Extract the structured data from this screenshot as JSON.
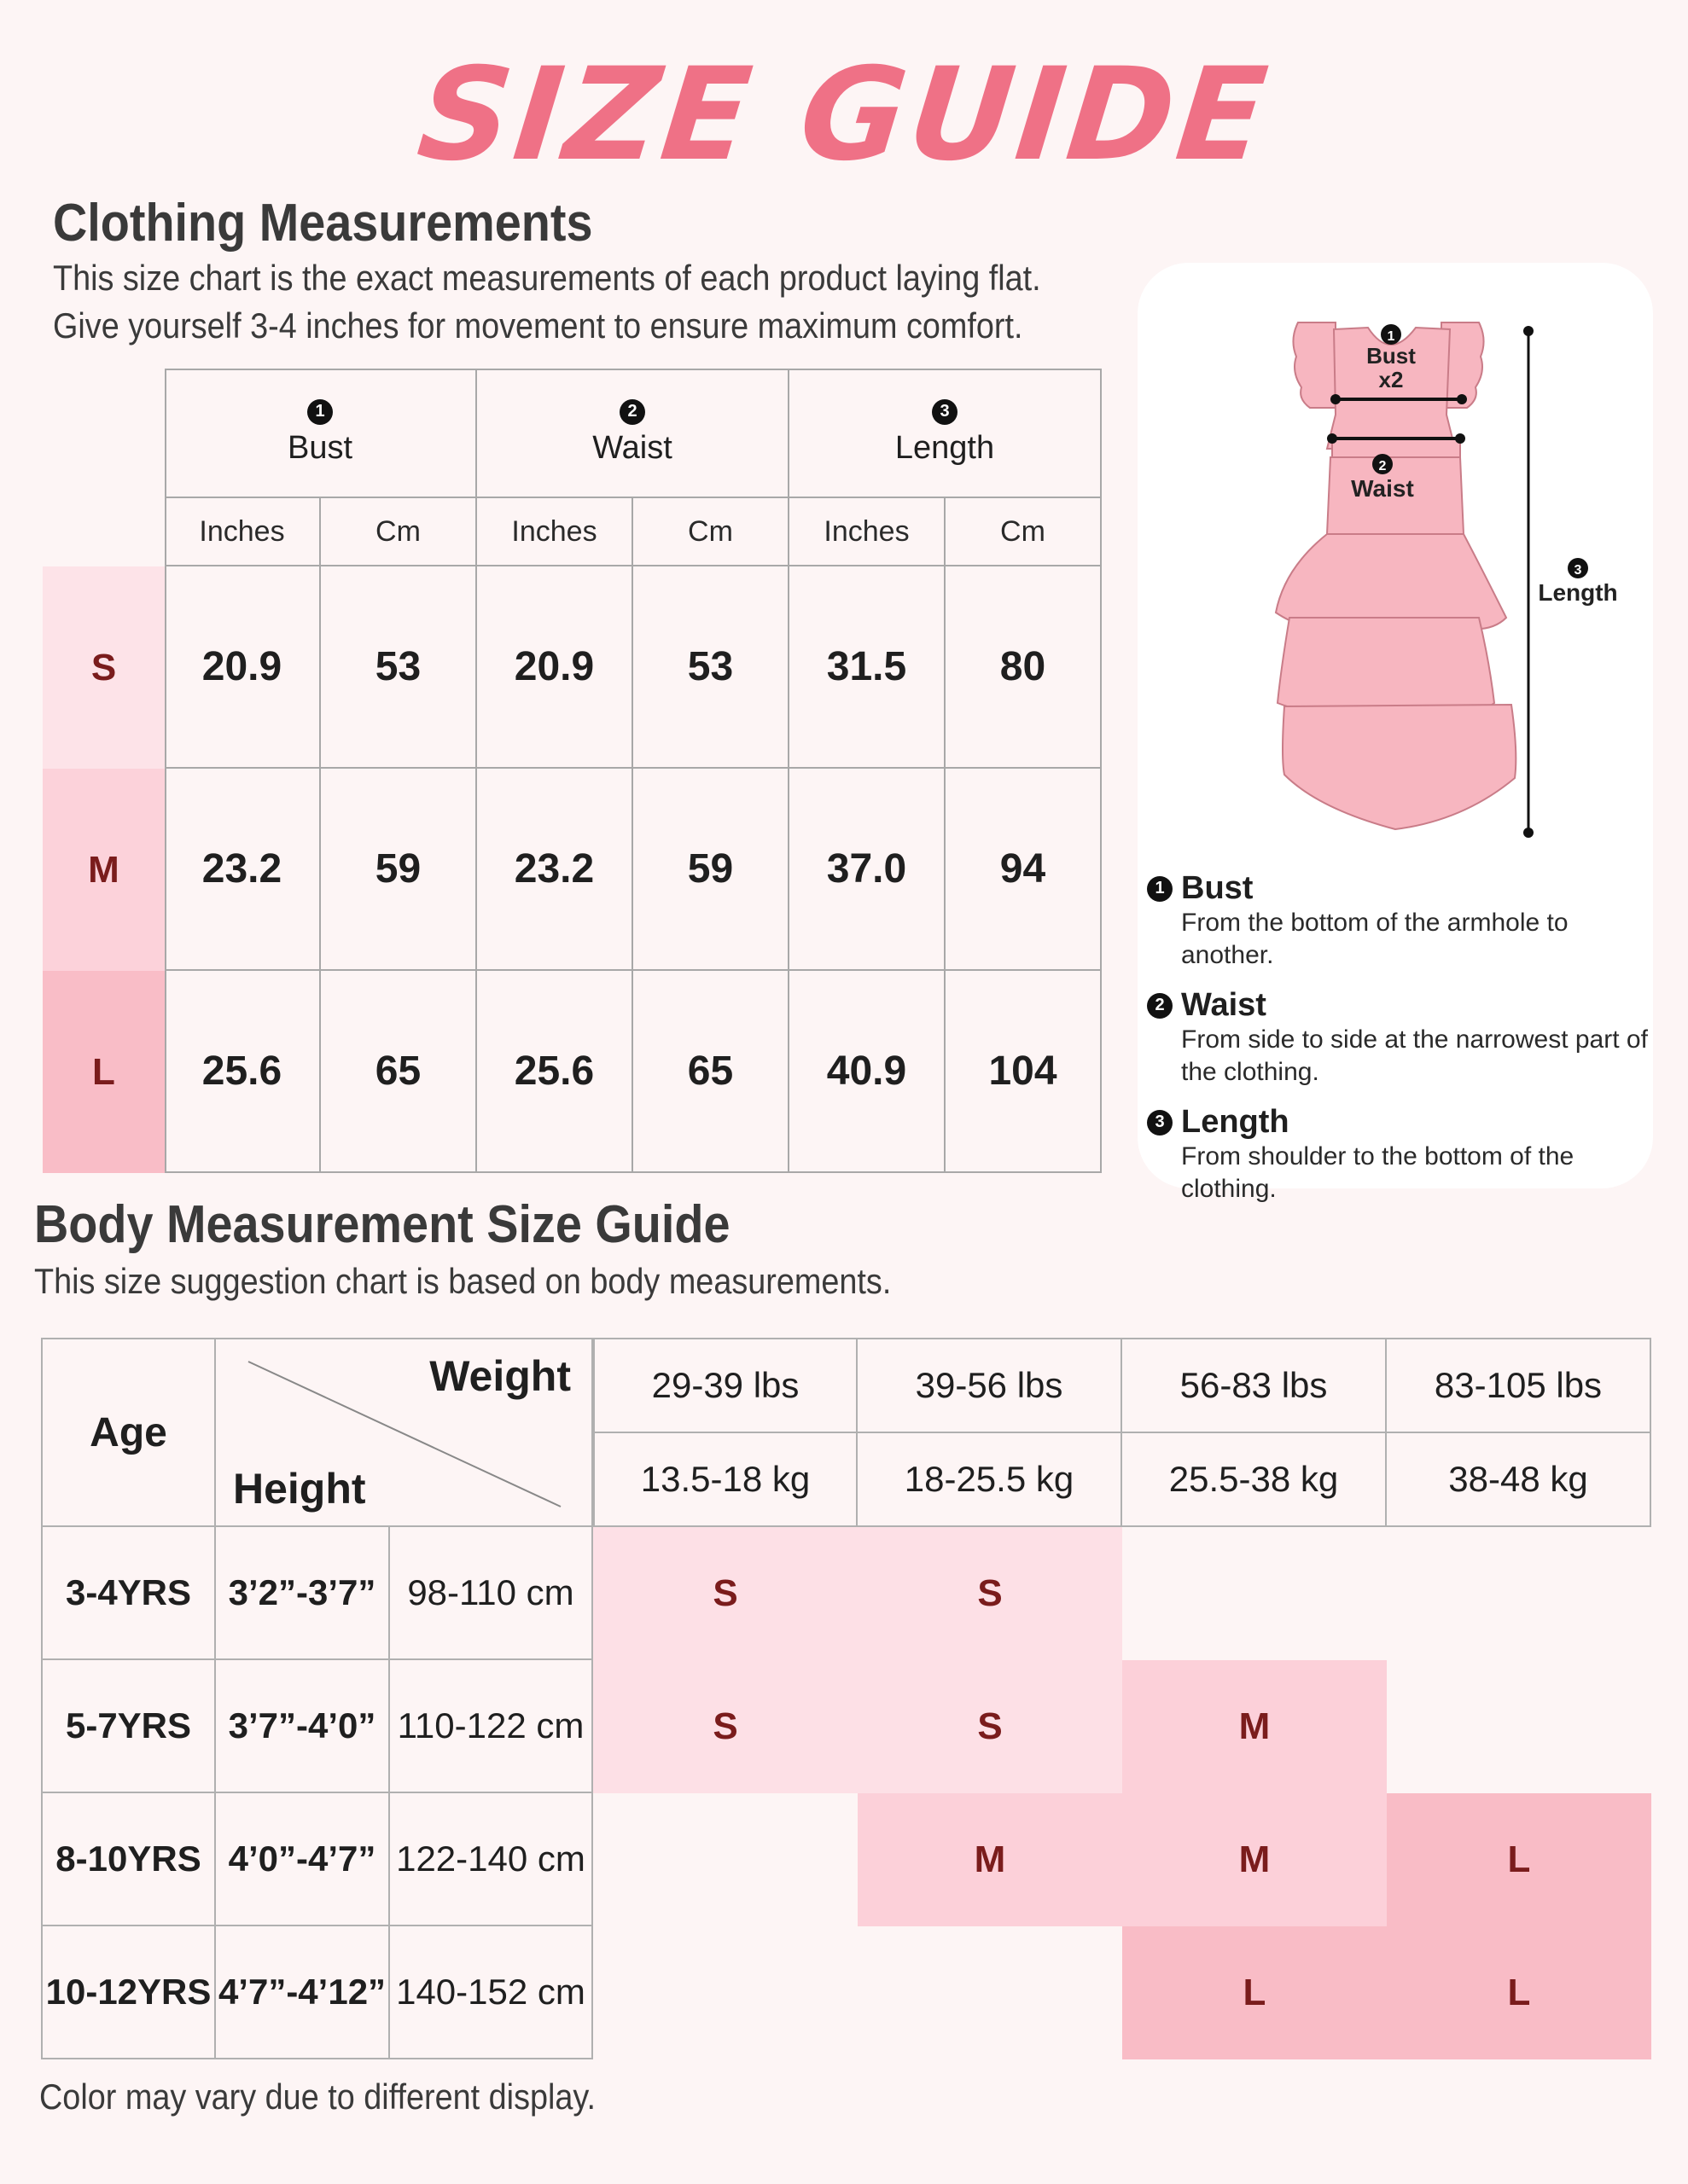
{
  "title": "SIZE GUIDE",
  "clothing": {
    "heading": "Clothing Measurements",
    "desc_line1": "This size chart is the exact measurements of each product laying flat.",
    "desc_line2": "Give yourself 3-4 inches for movement to ensure maximum comfort.",
    "measurements": [
      {
        "num": "1",
        "label": "Bust"
      },
      {
        "num": "2",
        "label": "Waist"
      },
      {
        "num": "3",
        "label": "Length"
      }
    ],
    "units": [
      "Inches",
      "Cm",
      "Inches",
      "Cm",
      "Inches",
      "Cm"
    ],
    "rows": [
      {
        "size": "S",
        "color": "#fde3e8",
        "values": [
          "20.9",
          "53",
          "20.9",
          "53",
          "31.5",
          "80"
        ]
      },
      {
        "size": "M",
        "color": "#fcd2da",
        "values": [
          "23.2",
          "59",
          "23.2",
          "59",
          "37.0",
          "94"
        ]
      },
      {
        "size": "L",
        "color": "#f9bdc7",
        "values": [
          "25.6",
          "65",
          "25.6",
          "65",
          "40.9",
          "104"
        ]
      }
    ]
  },
  "diagram": {
    "bust_label": "Bust",
    "bust_sub": "x2",
    "waist_label": "Waist",
    "length_label": "Length",
    "dress_color": "#f7b6c0"
  },
  "legend": [
    {
      "num": "1",
      "title": "Bust",
      "desc": [
        "From the bottom of the armhole to another."
      ]
    },
    {
      "num": "2",
      "title": "Waist",
      "desc": [
        "From side to side at the narrowest part of",
        "the clothing."
      ]
    },
    {
      "num": "3",
      "title": "Length",
      "desc": [
        "From shoulder to the bottom of the clothing."
      ]
    }
  ],
  "body": {
    "heading": "Body Measurement Size Guide",
    "desc": "This size suggestion chart is based on body measurements.",
    "age_header": "Age",
    "weight_header": "Weight",
    "height_header": "Height",
    "weights_lbs": [
      "29-39 lbs",
      "39-56 lbs",
      "56-83 lbs",
      "83-105 lbs"
    ],
    "weights_kg": [
      "13.5-18 kg",
      "18-25.5 kg",
      "25.5-38 kg",
      "38-48 kg"
    ],
    "rows": [
      {
        "age": "3-4YRS",
        "height_in": "3’2”-3’7”",
        "height_cm": "98-110 cm",
        "sizes": [
          "S",
          "S",
          "",
          ""
        ]
      },
      {
        "age": "5-7YRS",
        "height_in": "3’7”-4’0”",
        "height_cm": "110-122 cm",
        "sizes": [
          "S",
          "S",
          "M",
          ""
        ]
      },
      {
        "age": "8-10YRS",
        "height_in": "4’0”-4’7”",
        "height_cm": "122-140 cm",
        "sizes": [
          "",
          "M",
          "M",
          "L"
        ]
      },
      {
        "age": "10-12YRS",
        "height_in": "4’7”-4’12”",
        "height_cm": "140-152 cm",
        "sizes": [
          "",
          "",
          "L",
          "L"
        ]
      }
    ],
    "size_colors": {
      "S": "#fde0e6",
      "M": "#fcd0d9",
      "L": "#f9bcc6"
    }
  },
  "footer": "Color may vary due to different display."
}
